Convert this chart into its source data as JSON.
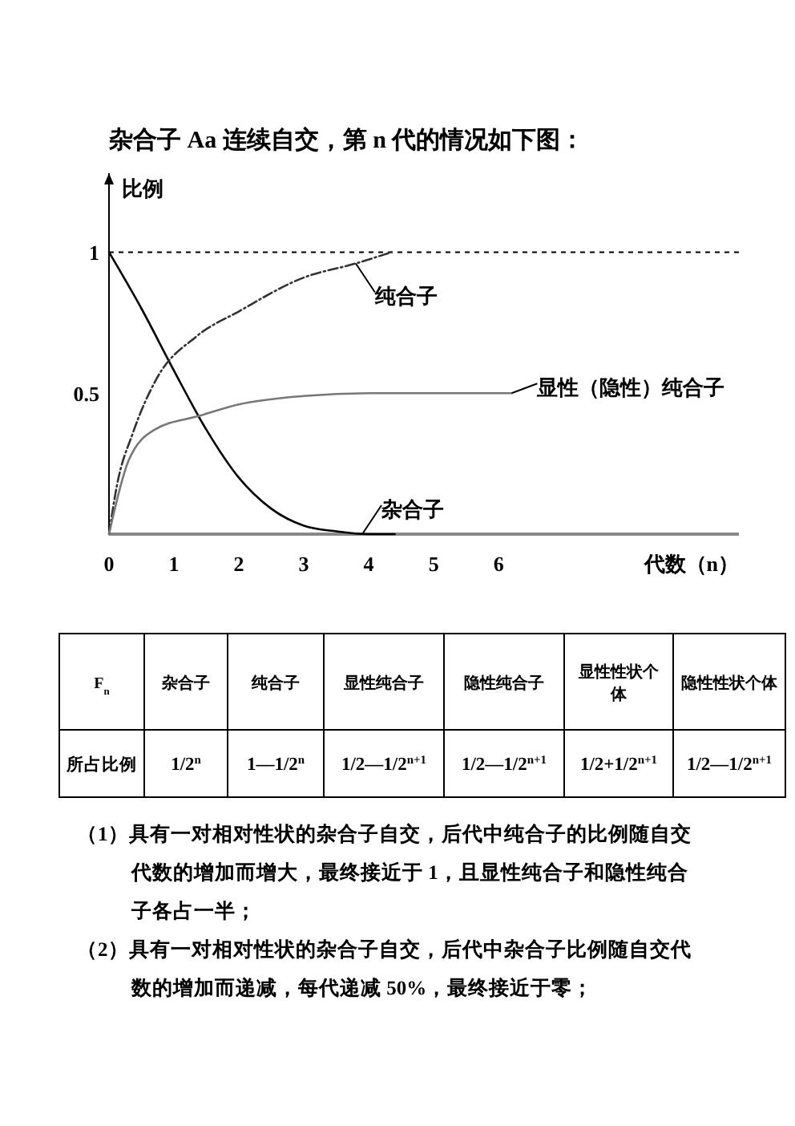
{
  "chart_data": {
    "type": "line",
    "title": "杂合子 Aa 连续自交，第 n 代的情况如下图：",
    "xlabel": "代数（n）",
    "ylabel": "比例",
    "xlim": [
      0,
      9.7
    ],
    "ylim": [
      0,
      1.28
    ],
    "xticks": [
      0,
      1,
      2,
      3,
      4,
      5,
      6
    ],
    "yticks": [
      0.5,
      1
    ],
    "grid": false,
    "series": [
      {
        "color": "#000000",
        "line_style": "solid",
        "x": [
          0,
          0.5,
          1,
          1.5,
          2,
          2.5,
          3,
          3.5,
          4,
          4.4
        ],
        "values": [
          1,
          0.8,
          0.58,
          0.37,
          0.2,
          0.09,
          0.03,
          0.01,
          0,
          0
        ]
      },
      {
        "color": "#333333",
        "line_style": "dashed",
        "x": [
          0,
          0.12,
          0.37,
          0.73,
          1.34,
          2,
          3,
          3.8,
          4.35
        ],
        "values": [
          0,
          0.17,
          0.36,
          0.55,
          0.7,
          0.79,
          0.91,
          0.96,
          1
        ]
      },
      {
        "color": "#777777",
        "line_style": "solid",
        "x": [
          0,
          0.3,
          0.7,
          1.4,
          2,
          3,
          4,
          5,
          6.2
        ],
        "values": [
          0,
          0.26,
          0.37,
          0.42,
          0.46,
          0.49,
          0.5,
          0.5,
          0.5
        ]
      }
    ],
    "ref_lines": [
      {
        "axis": "y",
        "value": 1,
        "color": "#000000",
        "line_style": "dotted"
      }
    ],
    "annotations": [
      {
        "text": "纯合子",
        "x": 3.8,
        "y": 0.96
      },
      {
        "text": "显性（隐性）纯合子",
        "x": 6.2,
        "y": 0.5
      },
      {
        "text": "杂合子",
        "x": 3.9,
        "y": 0
      },
      "F$_{n}$",
      "杂合子",
      "纯合子",
      "显性纯合子",
      "隐性纯合子",
      "显性性状个体",
      "隐性性状个体",
      "所占比例",
      "1/2$^{n}$",
      "1—1/2$^{n}$",
      "1/2—1/2$^{n+1}$",
      "1/2—1/2$^{n+1}$",
      "1/2+1/2$^{n+1}$",
      "1/2—1/2$^{n+1}$",
      "（1）具有一对相对性状的杂合子自交，后代中纯合子的比例随自交代数的增加而增大，最终接近于 1，且显性纯合子和隐性纯合子各占一半；",
      "（2）具有一对相对性状的杂合子自交，后代中杂合子比例随自交代数的增加而递减，每代递减 50%，最终接近于零；"
    ]
  }
}
